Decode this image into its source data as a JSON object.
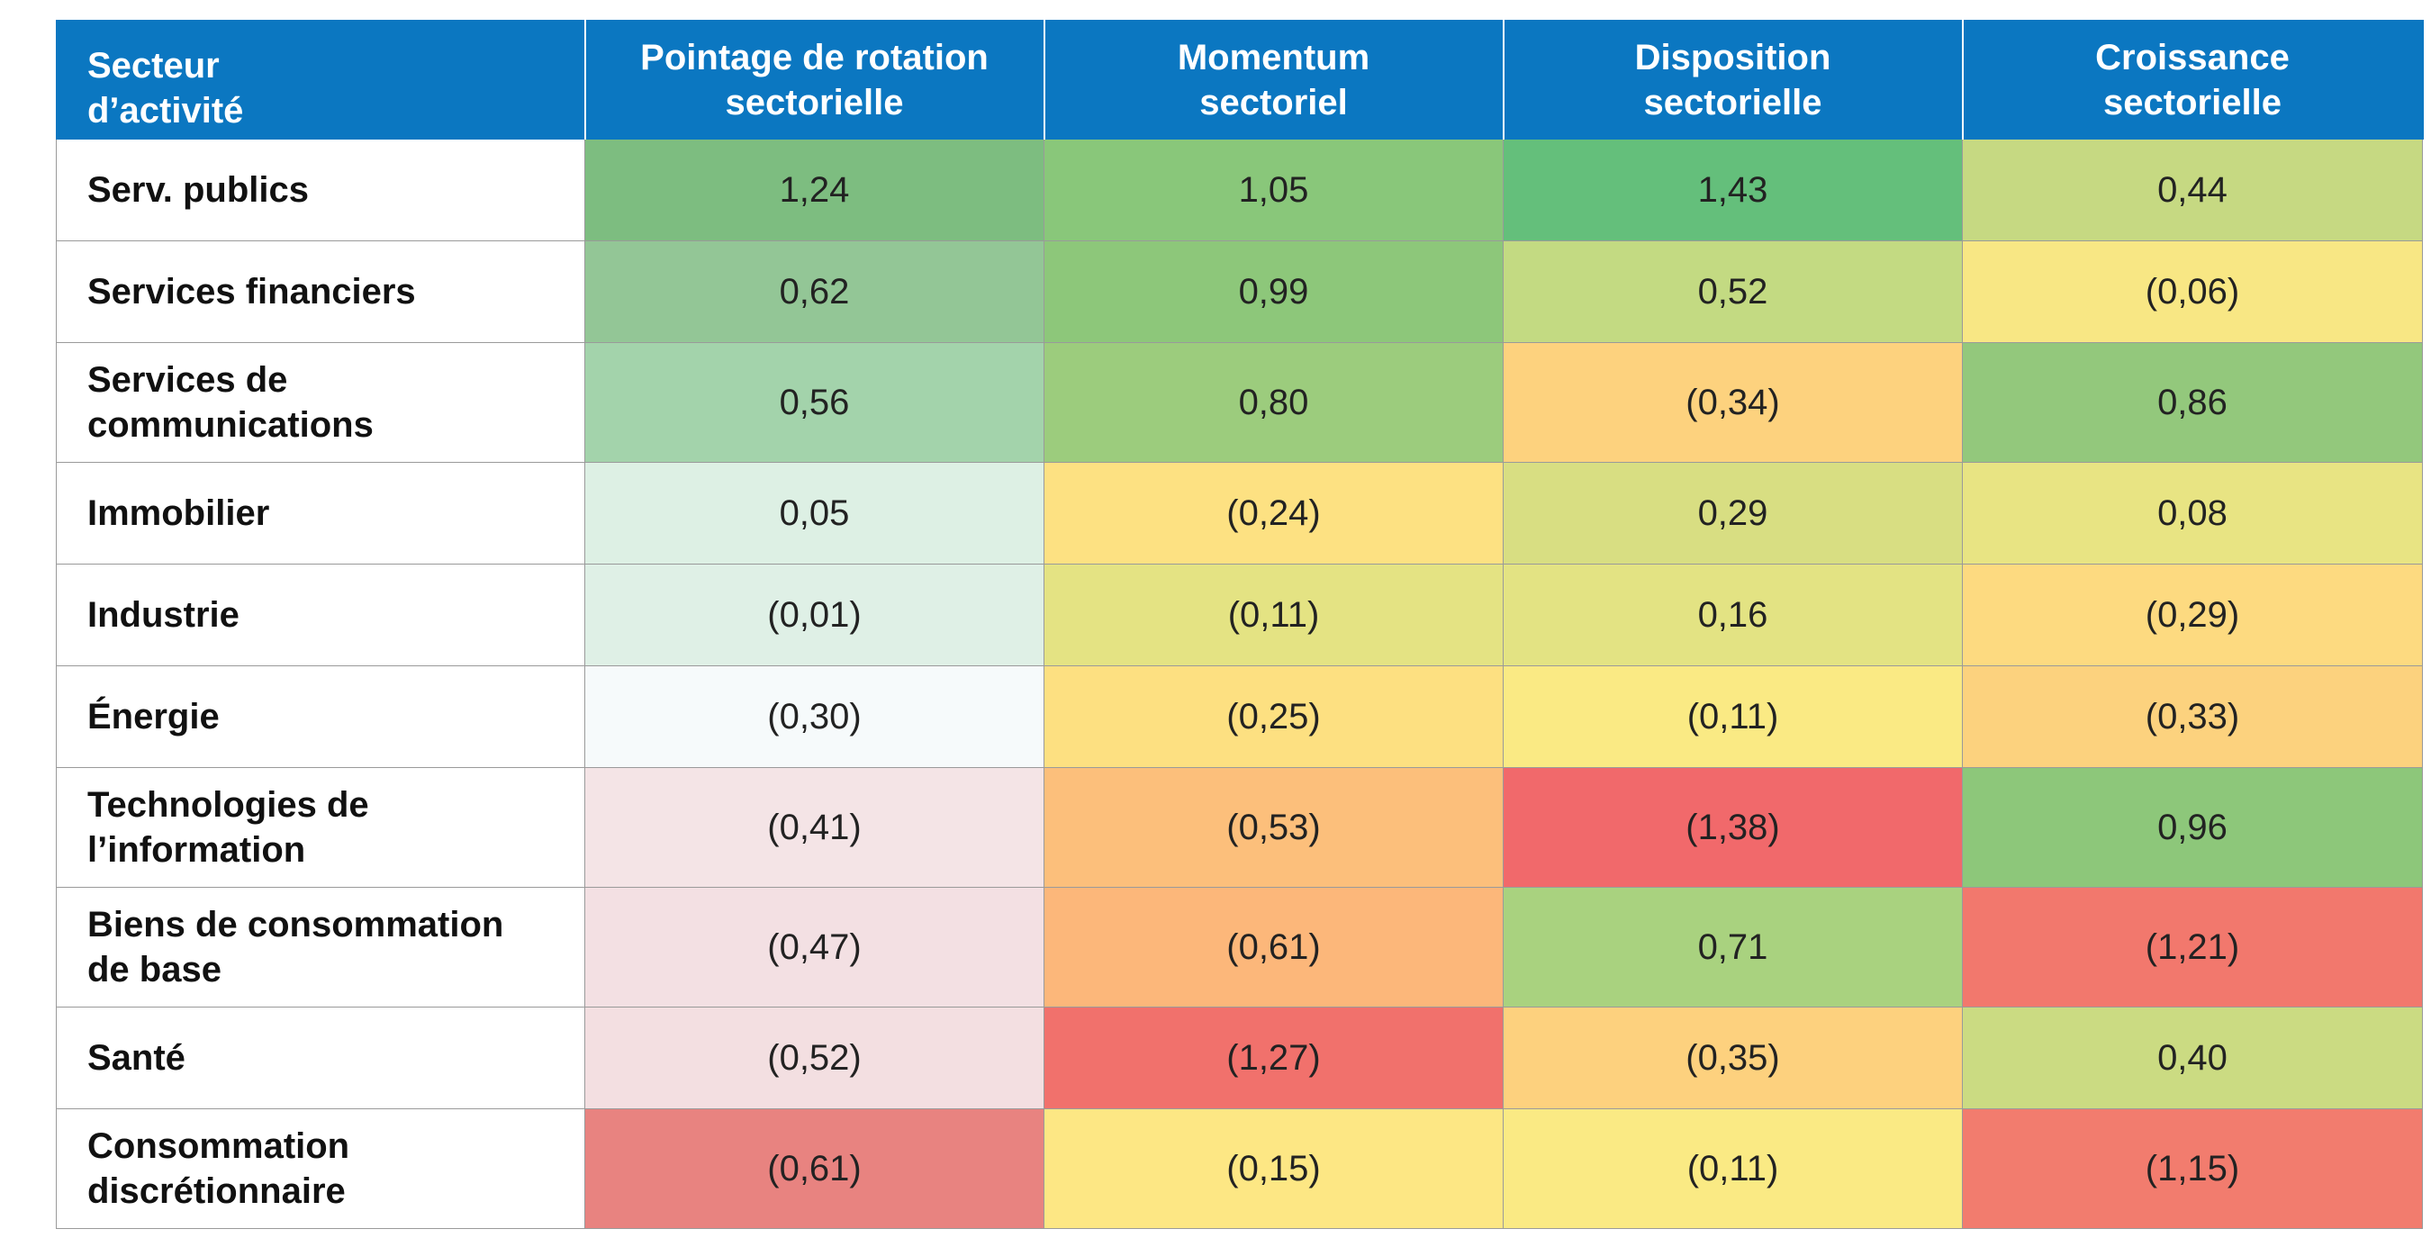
{
  "chart_data": {
    "type": "heatmap",
    "row_header": [
      "Secteur",
      "d’activité"
    ],
    "columns": [
      [
        "Pointage de rotation",
        "sectorielle"
      ],
      [
        "Momentum",
        "sectoriel"
      ],
      [
        "Disposition",
        "sectorielle"
      ],
      [
        "Croissance",
        "sectorielle"
      ]
    ],
    "rows": [
      {
        "label": [
          "Serv. publics"
        ],
        "values": [
          1.24,
          1.05,
          1.43,
          0.44
        ],
        "display": [
          "1,24",
          "1,05",
          "1,43",
          "0,44"
        ],
        "colors": [
          "#7dbd80",
          "#89c77a",
          "#64bf7b",
          "#c6d982"
        ]
      },
      {
        "label": [
          "Services financiers"
        ],
        "values": [
          0.62,
          0.99,
          0.52,
          -0.06
        ],
        "display": [
          "0,62",
          "0,99",
          "0,52",
          "(0,06)"
        ],
        "colors": [
          "#93c696",
          "#8dc77a",
          "#c3da82",
          "#f8e784"
        ]
      },
      {
        "label": [
          "Services de",
          "communications"
        ],
        "values": [
          0.56,
          0.8,
          -0.34,
          0.86
        ],
        "display": [
          "0,56",
          "0,80",
          "(0,34)",
          "0,86"
        ],
        "colors": [
          "#a3d3ab",
          "#9ccc7d",
          "#fdd27e",
          "#93c87c"
        ]
      },
      {
        "label": [
          "Immobilier"
        ],
        "values": [
          0.05,
          -0.24,
          0.29,
          0.08
        ],
        "display": [
          "0,05",
          "(0,24)",
          "0,29",
          "0,08"
        ],
        "colors": [
          "#ddf0e4",
          "#fde182",
          "#d8de82",
          "#e8e483"
        ]
      },
      {
        "label": [
          "Industrie"
        ],
        "values": [
          -0.01,
          -0.11,
          0.16,
          -0.29
        ],
        "display": [
          "(0,01)",
          "(0,11)",
          "0,16",
          "(0,29)"
        ],
        "colors": [
          "#dff0e6",
          "#e4e383",
          "#e3e383",
          "#fdda80"
        ]
      },
      {
        "label": [
          "Énergie"
        ],
        "values": [
          -0.3,
          -0.25,
          -0.11,
          -0.33
        ],
        "display": [
          "(0,30)",
          "(0,25)",
          "(0,11)",
          "(0,33)"
        ],
        "colors": [
          "#f6fafb",
          "#fde081",
          "#faea84",
          "#fcd27e"
        ]
      },
      {
        "label": [
          "Technologies de",
          "l’information"
        ],
        "values": [
          -0.41,
          -0.53,
          -1.38,
          0.96
        ],
        "display": [
          "(0,41)",
          "(0,53)",
          "(1,38)",
          "0,96"
        ],
        "colors": [
          "#f4e4e6",
          "#fcbf7b",
          "#f1696b",
          "#8dc77a"
        ]
      },
      {
        "label": [
          "Biens de consommation",
          "de base"
        ],
        "values": [
          -0.47,
          -0.61,
          0.71,
          -1.21
        ],
        "display": [
          "(0,47)",
          "(0,61)",
          "0,71",
          "(1,21)"
        ],
        "colors": [
          "#f3e0e3",
          "#fcb77a",
          "#a9d27f",
          "#f2786d"
        ]
      },
      {
        "label": [
          "Santé"
        ],
        "values": [
          -0.52,
          -1.27,
          -0.35,
          0.4
        ],
        "display": [
          "(0,52)",
          "(1,27)",
          "(0,35)",
          "0,40"
        ],
        "colors": [
          "#f3dfe1",
          "#f1716c",
          "#fdd17e",
          "#cbdb82"
        ]
      },
      {
        "label": [
          "Consommation",
          "discrétionnaire"
        ],
        "values": [
          -0.61,
          -0.15,
          -0.11,
          -1.15
        ],
        "display": [
          "(0,61)",
          "(0,15)",
          "(0,11)",
          "(1,15)"
        ],
        "colors": [
          "#e88380",
          "#fde784",
          "#faea84",
          "#f27c6e"
        ]
      }
    ]
  }
}
